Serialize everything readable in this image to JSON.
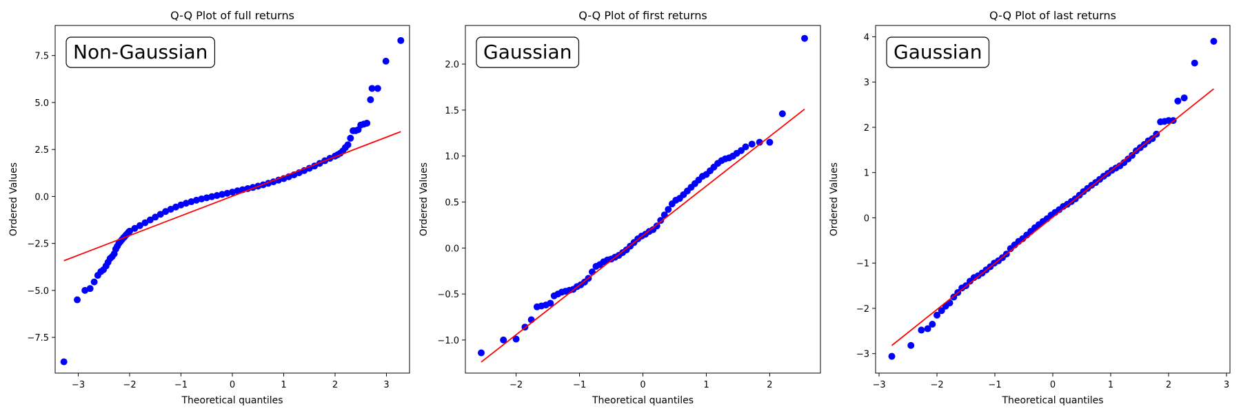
{
  "chart_data": [
    {
      "type": "scatter",
      "title": "Q-Q Plot of full returns",
      "xlabel": "Theoretical quantiles",
      "ylabel": "Ordered Values",
      "annotation": "Non-Gaussian",
      "xlim": [
        -3.45,
        3.45
      ],
      "ylim": [
        -9.4,
        9.1
      ],
      "xticks": [
        -3,
        -2,
        -1,
        0,
        1,
        2,
        3
      ],
      "yticks": [
        -7.5,
        -5.0,
        -2.5,
        0.0,
        2.5,
        5.0,
        7.5
      ],
      "ytick_labels": [
        "−7.5",
        "−5.0",
        "−2.5",
        "0.0",
        "2.5",
        "5.0",
        "7.5"
      ],
      "xtick_labels": [
        "−3",
        "−2",
        "−1",
        "0",
        "1",
        "2",
        "3"
      ],
      "grid": false,
      "point_color": "#0000ff",
      "line_color": "#ff0000",
      "fit_line": {
        "x": [
          -3.28,
          3.28
        ],
        "y": [
          -3.42,
          3.45
        ]
      },
      "series": [
        {
          "x": [
            -3.28,
            -3.02,
            -2.87,
            -2.77,
            -2.69,
            -2.62,
            -2.56,
            -2.51,
            -2.46,
            -2.42,
            -2.38,
            -2.34,
            -2.3,
            -2.27,
            -2.24,
            -2.21,
            -2.18,
            -2.15,
            -2.12,
            -2.1,
            -2.07,
            -2.05,
            -2.02,
            -2.0,
            -1.9,
            -1.8,
            -1.7,
            -1.6,
            -1.5,
            -1.4,
            -1.3,
            -1.2,
            -1.1,
            -1.0,
            -0.9,
            -0.8,
            -0.7,
            -0.6,
            -0.5,
            -0.4,
            -0.3,
            -0.2,
            -0.1,
            0.0,
            0.1,
            0.2,
            0.3,
            0.4,
            0.5,
            0.6,
            0.7,
            0.8,
            0.9,
            1.0,
            1.1,
            1.2,
            1.3,
            1.4,
            1.5,
            1.6,
            1.7,
            1.8,
            1.9,
            2.0,
            2.05,
            2.1,
            2.15,
            2.2,
            2.25,
            2.3,
            2.35,
            2.4,
            2.45,
            2.5,
            2.56,
            2.62,
            2.69,
            2.72,
            2.83,
            2.99,
            3.28
          ],
          "y": [
            -8.8,
            -5.5,
            -5.0,
            -4.9,
            -4.55,
            -4.2,
            -4.0,
            -3.9,
            -3.7,
            -3.5,
            -3.3,
            -3.2,
            -3.05,
            -2.8,
            -2.65,
            -2.5,
            -2.4,
            -2.3,
            -2.2,
            -2.15,
            -2.05,
            -2.0,
            -1.9,
            -1.85,
            -1.7,
            -1.55,
            -1.4,
            -1.25,
            -1.1,
            -0.95,
            -0.8,
            -0.68,
            -0.56,
            -0.45,
            -0.36,
            -0.28,
            -0.2,
            -0.13,
            -0.07,
            -0.01,
            0.05,
            0.11,
            0.17,
            0.23,
            0.3,
            0.36,
            0.42,
            0.48,
            0.55,
            0.62,
            0.7,
            0.78,
            0.87,
            0.95,
            1.05,
            1.15,
            1.26,
            1.38,
            1.5,
            1.62,
            1.76,
            1.9,
            2.03,
            2.15,
            2.22,
            2.3,
            2.42,
            2.6,
            2.75,
            3.1,
            3.5,
            3.5,
            3.55,
            3.8,
            3.85,
            3.9,
            5.15,
            5.75,
            5.75,
            7.2,
            8.3
          ]
        }
      ]
    },
    {
      "type": "scatter",
      "title": "Q-Q Plot of first returns",
      "xlabel": "Theoretical quantiles",
      "ylabel": "Ordered Values",
      "annotation": "Gaussian",
      "xlim": [
        -2.8,
        2.8
      ],
      "ylim": [
        -1.36,
        2.42
      ],
      "xticks": [
        -2,
        -1,
        0,
        1,
        2
      ],
      "yticks": [
        -1.0,
        -0.5,
        0.0,
        0.5,
        1.0,
        1.5,
        2.0
      ],
      "ytick_labels": [
        "−1.0",
        "−0.5",
        "0.0",
        "0.5",
        "1.0",
        "1.5",
        "2.0"
      ],
      "xtick_labels": [
        "−2",
        "−1",
        "0",
        "1",
        "2"
      ],
      "grid": false,
      "point_color": "#0000ff",
      "line_color": "#ff0000",
      "fit_line": {
        "x": [
          -2.55,
          2.55
        ],
        "y": [
          -1.24,
          1.51
        ]
      },
      "series": [
        {
          "x": [
            -2.55,
            -2.2,
            -2.0,
            -1.86,
            -1.76,
            -1.67,
            -1.6,
            -1.53,
            -1.46,
            -1.4,
            -1.34,
            -1.28,
            -1.22,
            -1.16,
            -1.1,
            -1.04,
            -0.98,
            -0.92,
            -0.86,
            -0.8,
            -0.74,
            -0.68,
            -0.62,
            -0.56,
            -0.5,
            -0.44,
            -0.38,
            -0.32,
            -0.26,
            -0.2,
            -0.14,
            -0.08,
            -0.02,
            0.04,
            0.1,
            0.16,
            0.22,
            0.28,
            0.34,
            0.4,
            0.46,
            0.52,
            0.58,
            0.64,
            0.7,
            0.76,
            0.82,
            0.88,
            0.94,
            1.0,
            1.06,
            1.12,
            1.18,
            1.24,
            1.3,
            1.36,
            1.42,
            1.48,
            1.55,
            1.62,
            1.72,
            1.84,
            2.0,
            2.2,
            2.55
          ],
          "y": [
            -1.14,
            -1.0,
            -0.99,
            -0.86,
            -0.78,
            -0.64,
            -0.63,
            -0.62,
            -0.6,
            -0.52,
            -0.5,
            -0.48,
            -0.47,
            -0.46,
            -0.45,
            -0.42,
            -0.4,
            -0.37,
            -0.33,
            -0.26,
            -0.2,
            -0.18,
            -0.15,
            -0.13,
            -0.12,
            -0.1,
            -0.08,
            -0.05,
            -0.02,
            0.02,
            0.06,
            0.1,
            0.13,
            0.15,
            0.18,
            0.2,
            0.24,
            0.3,
            0.36,
            0.42,
            0.48,
            0.52,
            0.54,
            0.58,
            0.62,
            0.66,
            0.7,
            0.74,
            0.78,
            0.8,
            0.84,
            0.88,
            0.92,
            0.95,
            0.97,
            0.98,
            1.0,
            1.03,
            1.06,
            1.1,
            1.13,
            1.15,
            1.15,
            1.46,
            2.28
          ]
        }
      ]
    },
    {
      "type": "scatter",
      "title": "Q-Q Plot of last returns",
      "xlabel": "Theoretical quantiles",
      "ylabel": "Ordered Values",
      "annotation": "Gaussian",
      "xlim": [
        -3.06,
        3.06
      ],
      "ylim": [
        -3.43,
        4.25
      ],
      "xticks": [
        -3,
        -2,
        -1,
        0,
        1,
        2,
        3
      ],
      "yticks": [
        -3,
        -2,
        -1,
        0,
        1,
        2,
        3,
        4
      ],
      "ytick_labels": [
        "−3",
        "−2",
        "−1",
        "0",
        "1",
        "2",
        "3",
        "4"
      ],
      "xtick_labels": [
        "−3",
        "−2",
        "−1",
        "0",
        "1",
        "2",
        "3"
      ],
      "grid": false,
      "point_color": "#0000ff",
      "line_color": "#ff0000",
      "fit_line": {
        "x": [
          -2.78,
          2.78
        ],
        "y": [
          -2.82,
          2.85
        ]
      },
      "series": [
        {
          "x": [
            -2.78,
            -2.45,
            -2.27,
            -2.16,
            -2.08,
            -2.0,
            -1.92,
            -1.85,
            -1.78,
            -1.71,
            -1.64,
            -1.57,
            -1.5,
            -1.43,
            -1.36,
            -1.29,
            -1.22,
            -1.15,
            -1.08,
            -1.01,
            -0.94,
            -0.87,
            -0.8,
            -0.73,
            -0.66,
            -0.59,
            -0.52,
            -0.45,
            -0.38,
            -0.31,
            -0.24,
            -0.17,
            -0.1,
            -0.03,
            0.04,
            0.11,
            0.18,
            0.25,
            0.32,
            0.39,
            0.46,
            0.53,
            0.6,
            0.67,
            0.74,
            0.81,
            0.88,
            0.95,
            1.02,
            1.09,
            1.16,
            1.23,
            1.3,
            1.37,
            1.44,
            1.51,
            1.58,
            1.65,
            1.72,
            1.79,
            1.86,
            1.93,
            2.0,
            2.08,
            2.16,
            2.27,
            2.45,
            2.78
          ],
          "y": [
            -3.06,
            -2.82,
            -2.48,
            -2.45,
            -2.35,
            -2.15,
            -2.05,
            -1.95,
            -1.88,
            -1.75,
            -1.65,
            -1.55,
            -1.5,
            -1.4,
            -1.32,
            -1.28,
            -1.22,
            -1.15,
            -1.08,
            -1.0,
            -0.95,
            -0.88,
            -0.8,
            -0.68,
            -0.6,
            -0.52,
            -0.46,
            -0.38,
            -0.3,
            -0.22,
            -0.15,
            -0.08,
            -0.02,
            0.06,
            0.12,
            0.18,
            0.25,
            0.3,
            0.36,
            0.42,
            0.5,
            0.58,
            0.65,
            0.72,
            0.78,
            0.85,
            0.92,
            0.98,
            1.05,
            1.1,
            1.15,
            1.22,
            1.3,
            1.38,
            1.48,
            1.55,
            1.62,
            1.7,
            1.75,
            1.85,
            2.12,
            2.13,
            2.15,
            2.15,
            2.58,
            2.65,
            3.42,
            3.9
          ]
        }
      ]
    }
  ]
}
